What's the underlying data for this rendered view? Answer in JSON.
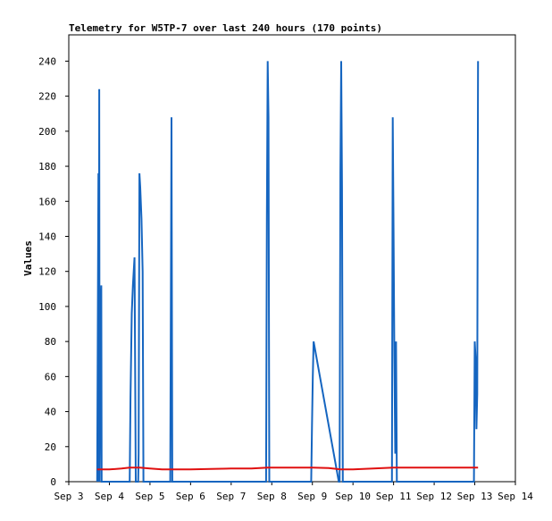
{
  "chart_data": {
    "type": "line",
    "title": "Telemetry for W5TP-7 over last 240 hours (170 points)",
    "xlabel": "",
    "ylabel": "Values",
    "ylim": [
      0,
      255
    ],
    "xlim": [
      "Sep 3",
      "Sep 14"
    ],
    "x_ticks": [
      "Sep 3",
      "Sep 4",
      "Sep 5",
      "Sep 6",
      "Sep 7",
      "Sep 8",
      "Sep 9",
      "Sep 10",
      "Sep 11",
      "Sep 12",
      "Sep 13",
      "Sep 14"
    ],
    "y_ticks": [
      0,
      20,
      40,
      60,
      80,
      100,
      120,
      140,
      160,
      180,
      200,
      220,
      240
    ],
    "grid": false,
    "legend": "none",
    "series": [
      {
        "color": "#1565c0",
        "x": [
          3.7,
          3.73,
          3.74,
          3.75,
          3.76,
          3.78,
          3.8,
          3.81,
          3.82,
          3.84,
          4.5,
          4.52,
          4.55,
          4.58,
          4.62,
          4.65,
          4.68,
          4.71,
          4.72,
          4.74,
          4.76,
          4.79,
          4.82,
          4.84,
          5.48,
          5.5,
          5.53,
          5.55,
          5.56,
          5.58,
          7.86,
          7.88,
          7.9,
          7.92,
          7.94,
          7.96,
          8.97,
          8.99,
          9.01,
          9.03,
          9.65,
          9.67,
          9.69,
          9.71,
          9.73,
          9.75,
          9.77,
          10.96,
          10.98,
          11.0,
          11.02,
          11.04,
          11.06,
          11.08,
          11.1,
          12.98,
          13.0,
          13.02,
          13.04,
          13.06,
          13.08
        ],
        "y": [
          0,
          176,
          0,
          224,
          0,
          88,
          112,
          0,
          0,
          0,
          0,
          48,
          96,
          112,
          128,
          0,
          0,
          0,
          16,
          176,
          168,
          150,
          120,
          0,
          0,
          0,
          208,
          0,
          0,
          0,
          0,
          152,
          240,
          208,
          0,
          0,
          0,
          32,
          60,
          80,
          0,
          0,
          176,
          240,
          168,
          0,
          0,
          0,
          208,
          144,
          72,
          16,
          80,
          0,
          0,
          0,
          80,
          70,
          30,
          50,
          240
        ]
      },
      {
        "color": "#e01010",
        "x": [
          3.7,
          4.0,
          4.3,
          4.5,
          4.75,
          5.0,
          5.3,
          5.6,
          6.0,
          6.5,
          7.0,
          7.5,
          7.9,
          8.5,
          9.0,
          9.4,
          9.7,
          10.0,
          10.5,
          11.0,
          11.5,
          12.0,
          12.5,
          13.08
        ],
        "y": [
          7,
          7,
          7.5,
          8,
          8,
          7.5,
          7,
          7,
          7,
          7.3,
          7.5,
          7.5,
          8,
          8,
          8,
          7.8,
          7,
          7,
          7.5,
          8,
          8,
          8,
          8,
          8
        ]
      }
    ]
  }
}
